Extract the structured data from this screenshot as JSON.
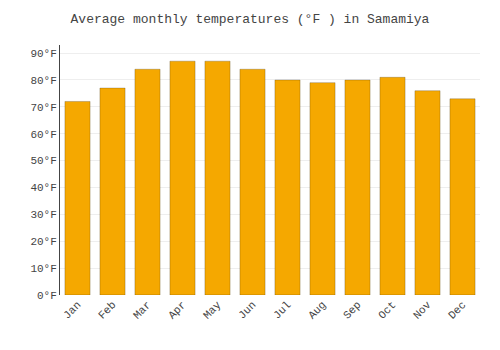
{
  "chart_data": {
    "type": "bar",
    "title": "Average monthly temperatures (°F ) in Samamiya",
    "categories": [
      "Jan",
      "Feb",
      "Mar",
      "Apr",
      "May",
      "Jun",
      "Jul",
      "Aug",
      "Sep",
      "Oct",
      "Nov",
      "Dec"
    ],
    "values": [
      72,
      77,
      84,
      87,
      87,
      84,
      80,
      79,
      80,
      81,
      76,
      73
    ],
    "color": "#F5A800",
    "ylim": [
      0,
      93
    ],
    "yticks": [
      {
        "value": 0,
        "label": "0°F"
      },
      {
        "value": 10,
        "label": "10°F"
      },
      {
        "value": 20,
        "label": "20°F"
      },
      {
        "value": 30,
        "label": "30°F"
      },
      {
        "value": 40,
        "label": "40°F"
      },
      {
        "value": 50,
        "label": "50°F"
      },
      {
        "value": 60,
        "label": "60°F"
      },
      {
        "value": 70,
        "label": "70°F"
      },
      {
        "value": 80,
        "label": "80°F"
      },
      {
        "value": 90,
        "label": "90°F"
      }
    ],
    "grid": true
  }
}
